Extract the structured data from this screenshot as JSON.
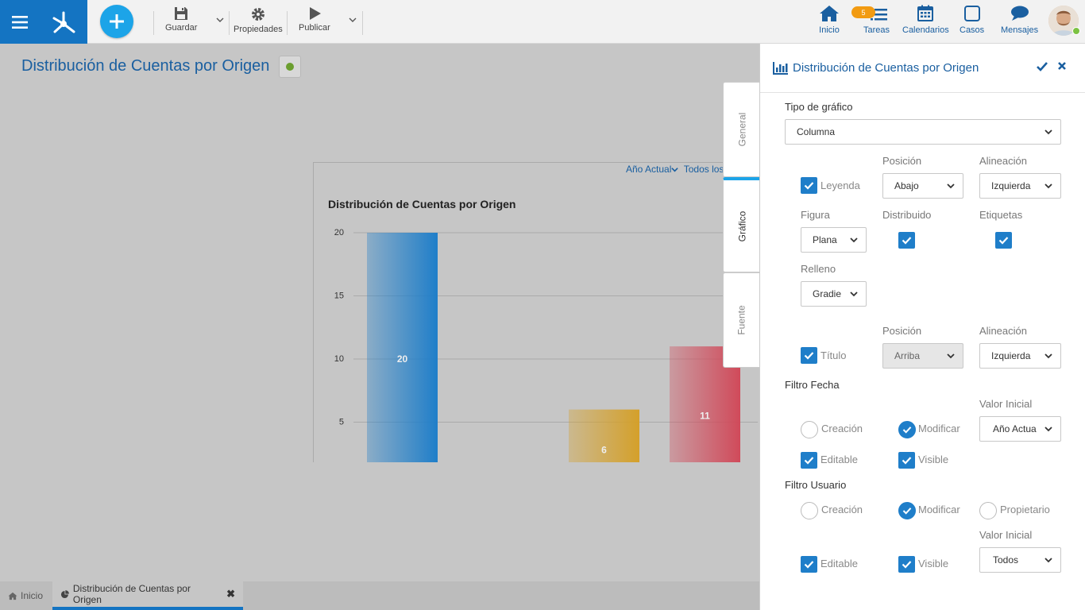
{
  "toolbar": {
    "guardar": "Guardar",
    "propiedades": "Propiedades",
    "publicar": "Publicar"
  },
  "nav": {
    "inicio": "Inicio",
    "tareas": "Tareas",
    "tareas_badge": "5",
    "calendarios": "Calendarios",
    "casos": "Casos",
    "mensajes": "Mensajes"
  },
  "page": {
    "title": "Distribución de Cuentas por Origen"
  },
  "chart_filters": {
    "period": "Año Actual",
    "users": "Todos los"
  },
  "chart_data": {
    "type": "bar",
    "title": "Distribución de Cuentas por Origen",
    "categories": [
      "",
      "",
      "",
      ""
    ],
    "values": [
      20,
      0.2,
      6,
      11
    ],
    "data_labels": [
      "20",
      "",
      "6",
      "11"
    ],
    "colors": [
      "#1f7ec9",
      "#2fbf8a",
      "#d4a02a",
      "#d04a5a"
    ],
    "ylim": [
      0,
      20
    ],
    "yticks": [
      "20",
      "15",
      "10",
      "5"
    ],
    "grid": true
  },
  "bottom_tabs": {
    "inicio": "Inicio",
    "current": "Distribución de Cuentas por Origen"
  },
  "vtabs": {
    "general": "General",
    "grafico": "Gráfico",
    "fuente": "Fuente"
  },
  "panel": {
    "title": "Distribución de Cuentas por Origen",
    "tipo_label": "Tipo de gráfico",
    "tipo_value": "Columna",
    "posicion_label": "Posición",
    "alineacion_label": "Alineación",
    "leyenda_label": "Leyenda",
    "leyenda_pos": "Abajo",
    "leyenda_align": "Izquierda",
    "figura_label": "Figura",
    "figura_value": "Plana",
    "distribuido_label": "Distribuido",
    "etiquetas_label": "Etiquetas",
    "relleno_label": "Relleno",
    "relleno_value": "Gradie",
    "posicion2_label": "Posición",
    "alineacion2_label": "Alineación",
    "titulo_label": "Título",
    "titulo_pos": "Arriba",
    "titulo_align": "Izquierda",
    "filtro_fecha_label": "Filtro Fecha",
    "valor_inicial_label": "Valor Inicial",
    "fecha_creacion": "Creación",
    "fecha_modificar": "Modificar",
    "fecha_valor": "Año Actua",
    "fecha_editable": "Editable",
    "fecha_visible": "Visible",
    "filtro_usuario_label": "Filtro Usuario",
    "usuario_creacion": "Creación",
    "usuario_modificar": "Modificar",
    "usuario_propietario": "Propietario",
    "valor_inicial2_label": "Valor Inicial",
    "usuario_valor": "Todos",
    "usuario_editable": "Editable",
    "usuario_visible": "Visible"
  }
}
